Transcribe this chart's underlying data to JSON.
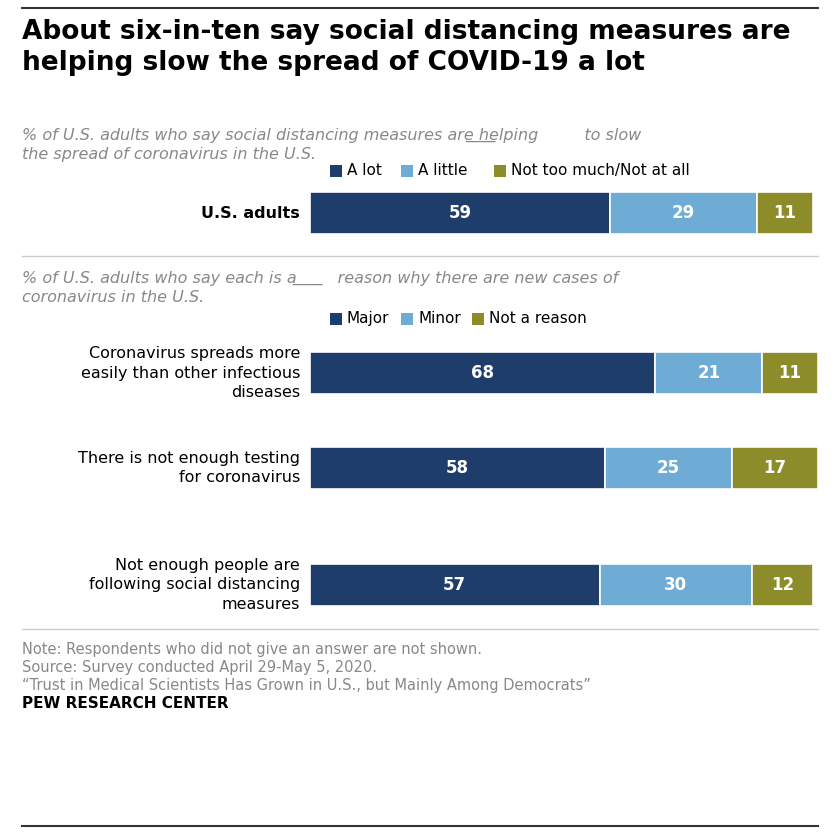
{
  "title": "About six-in-ten say social distancing measures are\nhelping slow the spread of COVID-19 a lot",
  "sub1_part1": "% of U.S. adults who say social distancing measures are helping",
  "sub1_blank": " ———",
  "sub1_part2": " to slow",
  "sub1_line2": "the spread of coronavirus in the U.S.",
  "sub2_part1": "% of U.S. adults who say each is a",
  "sub2_blank": " ———",
  "sub2_part2": " reason why there are new cases of",
  "sub2_line2": "coronavirus in the U.S.",
  "section1": {
    "categories": [
      "U.S. adults"
    ],
    "legend_labels": [
      "A lot",
      "A little",
      "Not too much/Not at all"
    ],
    "colors": [
      "#1f3d6b",
      "#6facd5",
      "#8c8c2a"
    ],
    "data": [
      [
        59,
        29,
        11
      ]
    ]
  },
  "section2": {
    "categories": [
      "Coronavirus spreads more\neasily than other infectious\ndiseases",
      "There is not enough testing\nfor coronavirus",
      "Not enough people are\nfollowing social distancing\nmeasures"
    ],
    "legend_labels": [
      "Major",
      "Minor",
      "Not a reason"
    ],
    "colors": [
      "#1f3d6b",
      "#6facd5",
      "#8c8c2a"
    ],
    "data": [
      [
        68,
        21,
        11
      ],
      [
        58,
        25,
        17
      ],
      [
        57,
        30,
        12
      ]
    ]
  },
  "footer_lines": [
    "Note: Respondents who did not give an answer are not shown.",
    "Source: Survey conducted April 29-May 5, 2020.",
    "“Trust in Medical Scientists Has Grown in U.S., but Mainly Among Democrats”",
    "PEW RESEARCH CENTER"
  ],
  "background_color": "#ffffff",
  "title_color": "#000000",
  "subtitle_color": "#888888",
  "label_color": "#000000",
  "bar_text_color": "#ffffff",
  "footer_color": "#888888",
  "footer_bold_color": "#000000",
  "top_line_color": "#333333",
  "bottom_line_color": "#333333"
}
